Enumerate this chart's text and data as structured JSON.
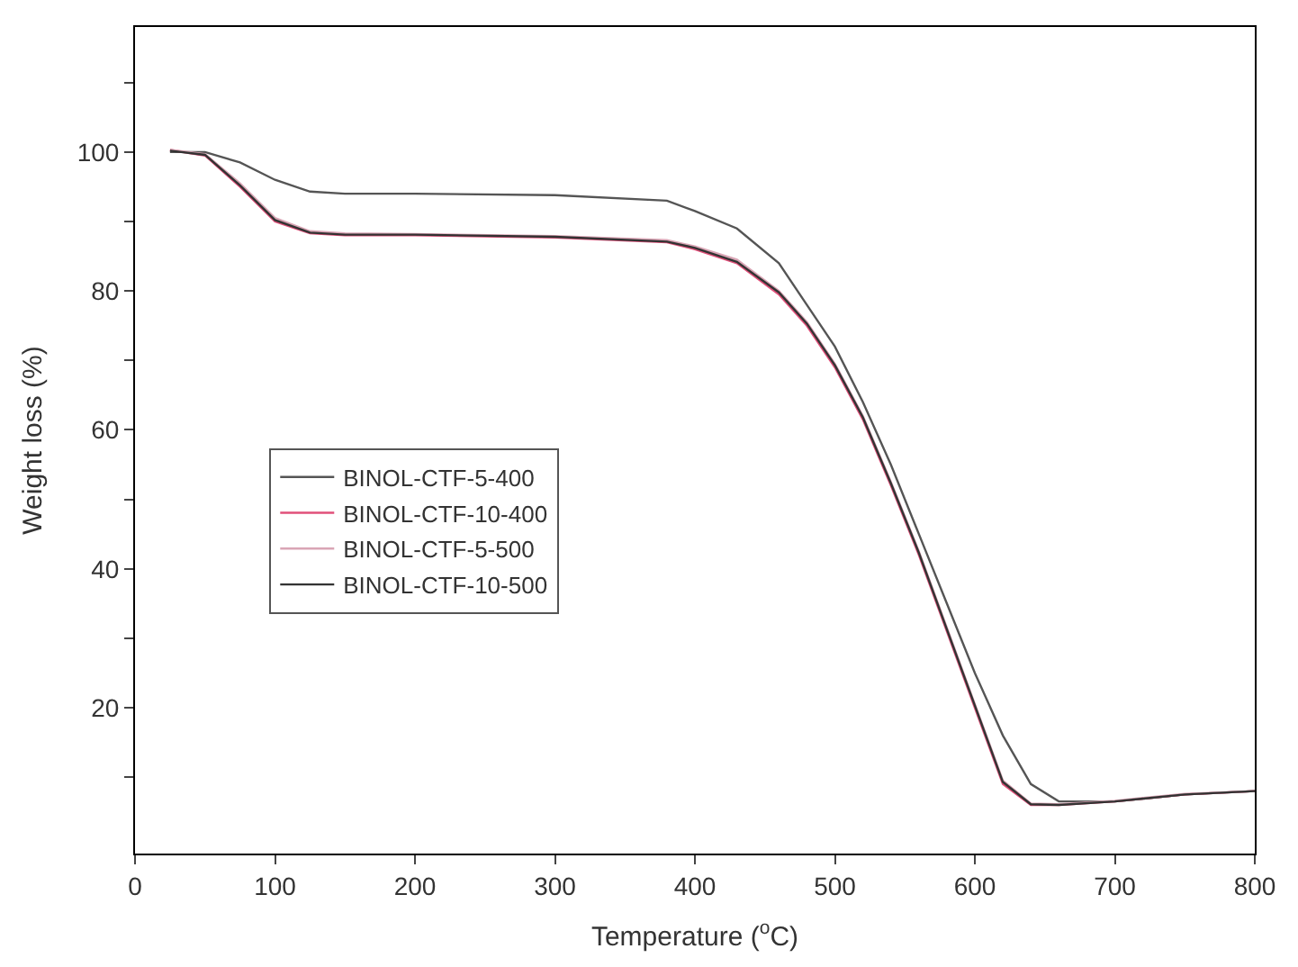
{
  "chart_data": {
    "type": "line",
    "xlabel": "Temperature ($^{o}$C)",
    "ylabel": "Weight loss (%)",
    "x": [
      25,
      50,
      75,
      100,
      125,
      150,
      200,
      300,
      380,
      400,
      430,
      460,
      480,
      500,
      520,
      540,
      560,
      580,
      600,
      620,
      640,
      660,
      700,
      750,
      800
    ],
    "series": [
      {
        "name": "BINOL-CTF-5-400",
        "color": "#555555",
        "values": [
          100,
          100,
          98.5,
          96,
          94.3,
          94,
          94,
          93.8,
          93,
          91.5,
          89,
          84,
          78,
          72,
          64,
          55,
          45,
          35,
          25,
          16,
          9,
          6.5,
          6.5,
          7.5,
          8
        ]
      },
      {
        "name": "BINOL-CTF-10-400",
        "color": "#e0507a",
        "values": [
          100.3,
          99.5,
          95,
          90,
          88.3,
          88,
          88,
          87.7,
          87,
          86,
          84,
          79.5,
          75,
          69,
          61.5,
          52,
          42,
          31,
          20,
          9,
          6,
          6,
          6.5,
          7.5,
          8
        ]
      },
      {
        "name": "BINOL-CTF-5-500",
        "color": "#d9a5b5",
        "values": [
          100.3,
          99.7,
          95.5,
          90.5,
          88.6,
          88.3,
          88.2,
          87.9,
          87.3,
          86.4,
          84.5,
          80,
          75.5,
          69.5,
          62,
          52.5,
          42.5,
          31.5,
          20.5,
          9.5,
          6.2,
          6.1,
          6.6,
          7.6,
          8
        ]
      },
      {
        "name": "BINOL-CTF-10-500",
        "color": "#333333",
        "values": [
          100.2,
          99.6,
          95.2,
          90.2,
          88.4,
          88.1,
          88.1,
          87.8,
          87.1,
          86.2,
          84.2,
          79.8,
          75.3,
          69.3,
          61.8,
          52.3,
          42.3,
          31.3,
          20.3,
          9.3,
          6.1,
          6,
          6.5,
          7.5,
          8
        ]
      }
    ],
    "xlim": [
      0,
      800
    ],
    "ylim": [
      -1,
      118
    ],
    "xticks": [
      0,
      100,
      200,
      300,
      400,
      500,
      600,
      700,
      800
    ],
    "yticks": [
      {
        "value": 10,
        "label": null
      },
      20,
      {
        "value": 30,
        "label": null
      },
      40,
      {
        "value": 50,
        "label": null
      },
      60,
      {
        "value": 70,
        "label": null
      },
      80,
      {
        "value": 90,
        "label": null
      },
      100,
      {
        "value": 110,
        "label": null
      }
    ],
    "legend": "left",
    "marker": "none",
    "line_style": "solid"
  }
}
